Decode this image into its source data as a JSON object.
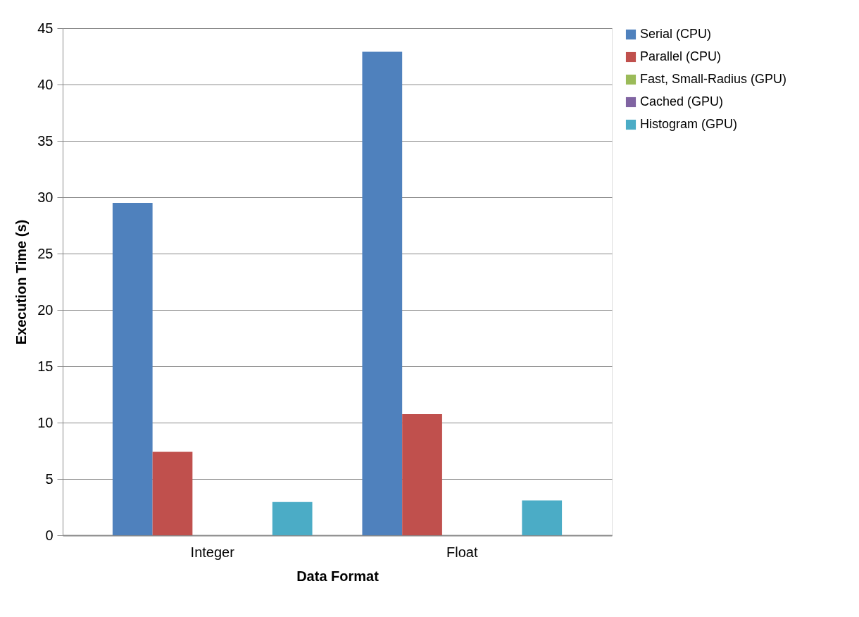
{
  "chart_data": {
    "type": "bar",
    "xlabel": "Data Format",
    "ylabel": "Execution Time (s)",
    "categories": [
      "Integer",
      "Float"
    ],
    "series": [
      {
        "name": "Serial (CPU)",
        "color": "#4f81bd",
        "values": [
          29.5,
          42.9
        ]
      },
      {
        "name": "Parallel (CPU)",
        "color": "#c0504d",
        "values": [
          7.4,
          10.75
        ]
      },
      {
        "name": "Fast, Small-Radius (GPU)",
        "color": "#9bbb59",
        "values": [
          0,
          0
        ]
      },
      {
        "name": "Cached (GPU)",
        "color": "#8064a2",
        "values": [
          0,
          0
        ]
      },
      {
        "name": "Histogram (GPU)",
        "color": "#4bacc6",
        "values": [
          2.95,
          3.1
        ]
      }
    ],
    "ylim": [
      0,
      45
    ],
    "yticks": [
      0,
      5,
      10,
      15,
      20,
      25,
      30,
      35,
      40,
      45
    ],
    "grid": "y",
    "legend": "right"
  }
}
